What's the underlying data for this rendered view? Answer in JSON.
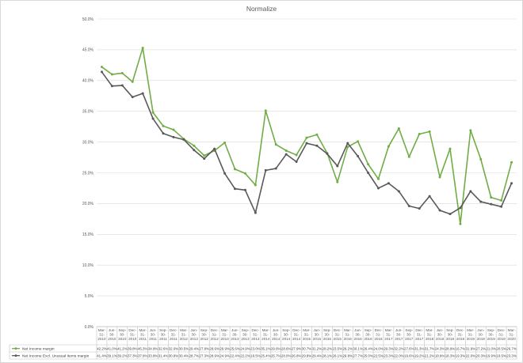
{
  "chart_data": {
    "type": "line",
    "title": "Normalize",
    "ylim": [
      0,
      50
    ],
    "yticks": [
      "0.0%",
      "5.0%",
      "10.0%",
      "15.0%",
      "20.0%",
      "25.0%",
      "30.0%",
      "35.0%",
      "40.0%",
      "45.0%",
      "50.0%"
    ],
    "grid": true,
    "legend": "bottom-table",
    "categories": [
      "Mar-31-2010",
      "Jun-30-2010",
      "Sep-30-2010",
      "Dec-31-2010",
      "Mar-31-2011",
      "Jun-30-2011",
      "Sep-30-2011",
      "Dec-31-2011",
      "Mar-31-2012",
      "Jun-30-2012",
      "Sep-30-2012",
      "Dec-31-2012",
      "Mar-31-2013",
      "Jun-30-2013",
      "Sep-30-2013",
      "Dec-31-2013",
      "Mar-31-2014",
      "Jun-30-2014",
      "Sep-30-2014",
      "Dec-31-2014",
      "Mar-31-2015",
      "Jun-30-2015",
      "Sep-30-2015",
      "Dec-31-2015",
      "Mar-31-2016",
      "Jun-30-2016",
      "Sep-30-2016",
      "Dec-31-2016",
      "Mar-31-2017",
      "Jun-30-2017",
      "Sep-30-2017",
      "Dec-31-2017",
      "Mar-31-2018",
      "Jun-30-2018",
      "Sep-30-2018",
      "Dec-31-2018",
      "Mar-31-2019",
      "Jun-30-2019",
      "Sep-30-2019",
      "Dec-31-2019",
      "Mar-31-2020"
    ],
    "series": [
      {
        "name": "Net Income margin",
        "color": "#70AD47",
        "values": [
          42.2,
          41.0,
          41.2,
          39.8,
          45.3,
          34.8,
          32.6,
          32.0,
          30.5,
          29.4,
          27.8,
          28.6,
          29.9,
          25.6,
          24.9,
          23.0,
          35.1,
          29.6,
          28.6,
          27.9,
          30.7,
          31.2,
          28.2,
          23.5,
          29.2,
          30.1,
          26.4,
          24.0,
          29.3,
          32.2,
          27.6,
          31.3,
          31.7,
          24.3,
          28.9,
          16.7,
          31.9,
          27.2,
          21.0,
          20.5,
          26.7
        ]
      },
      {
        "name": "Net Income Excl. Unusual Items margin",
        "color": "#595959",
        "values": [
          41.4,
          39.1,
          39.2,
          37.3,
          37.9,
          33.8,
          31.4,
          30.8,
          30.4,
          28.7,
          27.3,
          28.9,
          24.9,
          22.4,
          22.2,
          18.5,
          25.4,
          25.7,
          28.0,
          26.8,
          29.8,
          29.4,
          28.1,
          26.1,
          29.8,
          27.7,
          25.0,
          22.5,
          23.3,
          22.0,
          19.6,
          19.2,
          21.2,
          18.9,
          18.3,
          19.3,
          22.0,
          20.3,
          19.9,
          19.5,
          23.3
        ]
      }
    ],
    "data_table": {
      "rows": [
        [
          "42.2%",
          "41.0%",
          "41.2%",
          "39.8%",
          "45.3%",
          "34.8%",
          "32.6%",
          "32.0%",
          "30.5%",
          "29.4%",
          "27.8%",
          "28.6%",
          "29.9%",
          "25.6%",
          "24.9%",
          "23.0%",
          "35.1%",
          "29.6%",
          "28.6%",
          "27.9%",
          "30.7%",
          "31.2%",
          "28.2%",
          "23.5%",
          "29.2%",
          "30.1%",
          "26.4%",
          "24.0%",
          "29.3%",
          "32.2%",
          "27.6%",
          "31.3%",
          "31.7%",
          "24.3%",
          "28.9%",
          "16.7%",
          "31.9%",
          "27.2%",
          "21.0%",
          "20.5%",
          "26.7%"
        ],
        [
          "41.4%",
          "39.1%",
          "39.2%",
          "37.3%",
          "37.9%",
          "33.8%",
          "31.4%",
          "30.8%",
          "30.4%",
          "28.7%",
          "27.3%",
          "28.9%",
          "24.9%",
          "22.4%",
          "22.2%",
          "18.5%",
          "25.4%",
          "25.7%",
          "28.0%",
          "26.8%",
          "29.8%",
          "29.4%",
          "28.1%",
          "26.1%",
          "29.8%",
          "27.7%",
          "25.0%",
          "22.5%",
          "23.3%",
          "22.0%",
          "19.6%",
          "19.2%",
          "21.2%",
          "18.9%",
          "18.3%",
          "19.3%",
          "22.0%",
          "20.3%",
          "19.9%",
          "19.5%",
          "23.3%"
        ]
      ]
    }
  }
}
